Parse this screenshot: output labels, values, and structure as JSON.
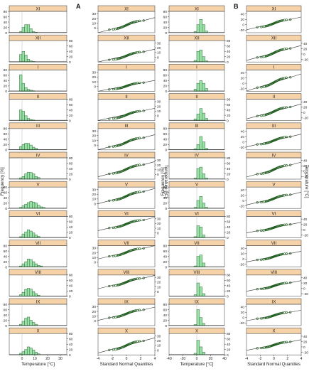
{
  "figure": {
    "panel_labels": [
      "A",
      "B"
    ],
    "months": [
      "XI",
      "XII",
      "I",
      "II",
      "III",
      "IV",
      "V",
      "VI",
      "VII",
      "VIII",
      "IX",
      "X"
    ],
    "colors": {
      "strip": "#f6d2a8",
      "bar": "#9be2a8",
      "point": "#1a5a1a",
      "frame": "#555555"
    }
  },
  "chart_data": [
    {
      "type": "bar",
      "title": "",
      "xlabel": "Temperature [°C]",
      "ylabel": "Frequency [%]",
      "xlim": [
        -10,
        35
      ],
      "ylim": [
        0,
        80
      ],
      "xticks": [
        0,
        10,
        20,
        30
      ],
      "yticks": [
        0,
        20,
        40,
        60,
        80
      ],
      "bin_width": 2,
      "bin_start": -2,
      "panels": [
        {
          "month": "XI",
          "values": [
            4,
            20,
            30,
            30,
            15,
            4,
            2
          ]
        },
        {
          "month": "XII",
          "values": [
            28,
            40,
            26,
            10,
            4,
            2
          ]
        },
        {
          "month": "I",
          "values": [
            62,
            30,
            14,
            7,
            4,
            2
          ]
        },
        {
          "month": "II",
          "values": [
            40,
            35,
            18,
            8,
            4,
            2
          ]
        },
        {
          "month": "III",
          "values": [
            12,
            20,
            25,
            24,
            18,
            10,
            6
          ]
        },
        {
          "month": "IV",
          "values": [
            5,
            10,
            20,
            26,
            25,
            20,
            10,
            6
          ]
        },
        {
          "month": "V",
          "values": [
            4,
            10,
            16,
            22,
            26,
            24,
            20,
            12,
            6,
            4
          ]
        },
        {
          "month": "VI",
          "values": [
            4,
            14,
            22,
            30,
            25,
            18,
            10,
            5
          ]
        },
        {
          "month": "VII",
          "values": [
            4,
            12,
            20,
            30,
            28,
            20,
            12,
            6,
            4
          ]
        },
        {
          "month": "VIII",
          "values": [
            6,
            15,
            26,
            30,
            27,
            18,
            10,
            4
          ]
        },
        {
          "month": "IX",
          "values": [
            5,
            16,
            28,
            32,
            20,
            12,
            5
          ]
        },
        {
          "month": "X",
          "values": [
            6,
            12,
            20,
            30,
            26,
            18,
            10,
            4
          ]
        }
      ]
    },
    {
      "type": "scatter",
      "title": "",
      "xlabel": "Standard Normal Quantiles",
      "ylabel": "Temperature [°C]",
      "xlim": [
        -4,
        4
      ],
      "ylim": [
        -10,
        35
      ],
      "xticks": [
        -4,
        -2,
        0,
        2,
        4
      ],
      "yticks": [
        0,
        10,
        20,
        30
      ],
      "panels": [
        {
          "month": "XI",
          "mean": 6,
          "sd": 4
        },
        {
          "month": "XII",
          "mean": 3,
          "sd": 3.5
        },
        {
          "month": "I",
          "mean": 1,
          "sd": 3
        },
        {
          "month": "II",
          "mean": 2,
          "sd": 3.5
        },
        {
          "month": "III",
          "mean": 6,
          "sd": 4
        },
        {
          "month": "IV",
          "mean": 11,
          "sd": 4
        },
        {
          "month": "V",
          "mean": 16,
          "sd": 4
        },
        {
          "month": "VI",
          "mean": 19,
          "sd": 3.5
        },
        {
          "month": "VII",
          "mean": 21,
          "sd": 3.5
        },
        {
          "month": "VIII",
          "mean": 20,
          "sd": 3.5
        },
        {
          "month": "IX",
          "mean": 15,
          "sd": 3.5
        },
        {
          "month": "X",
          "mean": 10,
          "sd": 4
        }
      ]
    },
    {
      "type": "bar",
      "title": "",
      "xlabel": "Temperature [°C]",
      "ylabel": "Frequency [%]",
      "xlim": [
        -40,
        40
      ],
      "ylim": [
        0,
        80
      ],
      "xticks": [
        -40,
        -20,
        0,
        20,
        40
      ],
      "yticks": [
        0,
        20,
        40,
        60,
        80
      ],
      "bin_width": 4,
      "bin_start": -4,
      "panels": [
        {
          "month": "XI",
          "values": [
            4,
            30,
            50,
            30,
            6
          ]
        },
        {
          "month": "XII",
          "values": [
            6,
            40,
            45,
            20,
            4
          ]
        },
        {
          "month": "I",
          "values": [
            8,
            30,
            40,
            30,
            10
          ]
        },
        {
          "month": "II",
          "values": [
            6,
            25,
            45,
            28,
            8
          ]
        },
        {
          "month": "III",
          "values": [
            4,
            20,
            50,
            30,
            6
          ]
        },
        {
          "month": "IV",
          "values": [
            4,
            40,
            45,
            20,
            4
          ]
        },
        {
          "month": "V",
          "values": [
            4,
            30,
            45,
            20,
            4
          ]
        },
        {
          "month": "VI",
          "values": [
            4,
            45,
            40,
            10
          ]
        },
        {
          "month": "VII",
          "values": [
            4,
            40,
            45,
            15
          ]
        },
        {
          "month": "VIII",
          "values": [
            6,
            50,
            35,
            10
          ]
        },
        {
          "month": "IX",
          "values": [
            4,
            60,
            30,
            8
          ]
        },
        {
          "month": "X",
          "values": [
            6,
            55,
            30,
            10
          ]
        }
      ]
    },
    {
      "type": "scatter",
      "title": "",
      "xlabel": "Standard Normal Quantiles",
      "ylabel": "Temperature [°C]",
      "xlim": [
        -4,
        4
      ],
      "ylim": [
        -30,
        50
      ],
      "xticks": [
        -4,
        -2,
        0,
        2,
        4
      ],
      "yticks": [
        -20,
        0,
        20,
        40
      ],
      "panels": [
        {
          "month": "XI",
          "mean": 5,
          "sd": 6
        },
        {
          "month": "XII",
          "mean": 4,
          "sd": 7
        },
        {
          "month": "I",
          "mean": 3,
          "sd": 8
        },
        {
          "month": "II",
          "mean": 4,
          "sd": 7
        },
        {
          "month": "III",
          "mean": 5,
          "sd": 6
        },
        {
          "month": "IV",
          "mean": 6,
          "sd": 7
        },
        {
          "month": "V",
          "mean": 7,
          "sd": 6
        },
        {
          "month": "VI",
          "mean": 8,
          "sd": 5
        },
        {
          "month": "VII",
          "mean": 9,
          "sd": 5
        },
        {
          "month": "VIII",
          "mean": 9,
          "sd": 5
        },
        {
          "month": "IX",
          "mean": 8,
          "sd": 5
        },
        {
          "month": "X",
          "mean": 7,
          "sd": 5
        }
      ]
    }
  ]
}
